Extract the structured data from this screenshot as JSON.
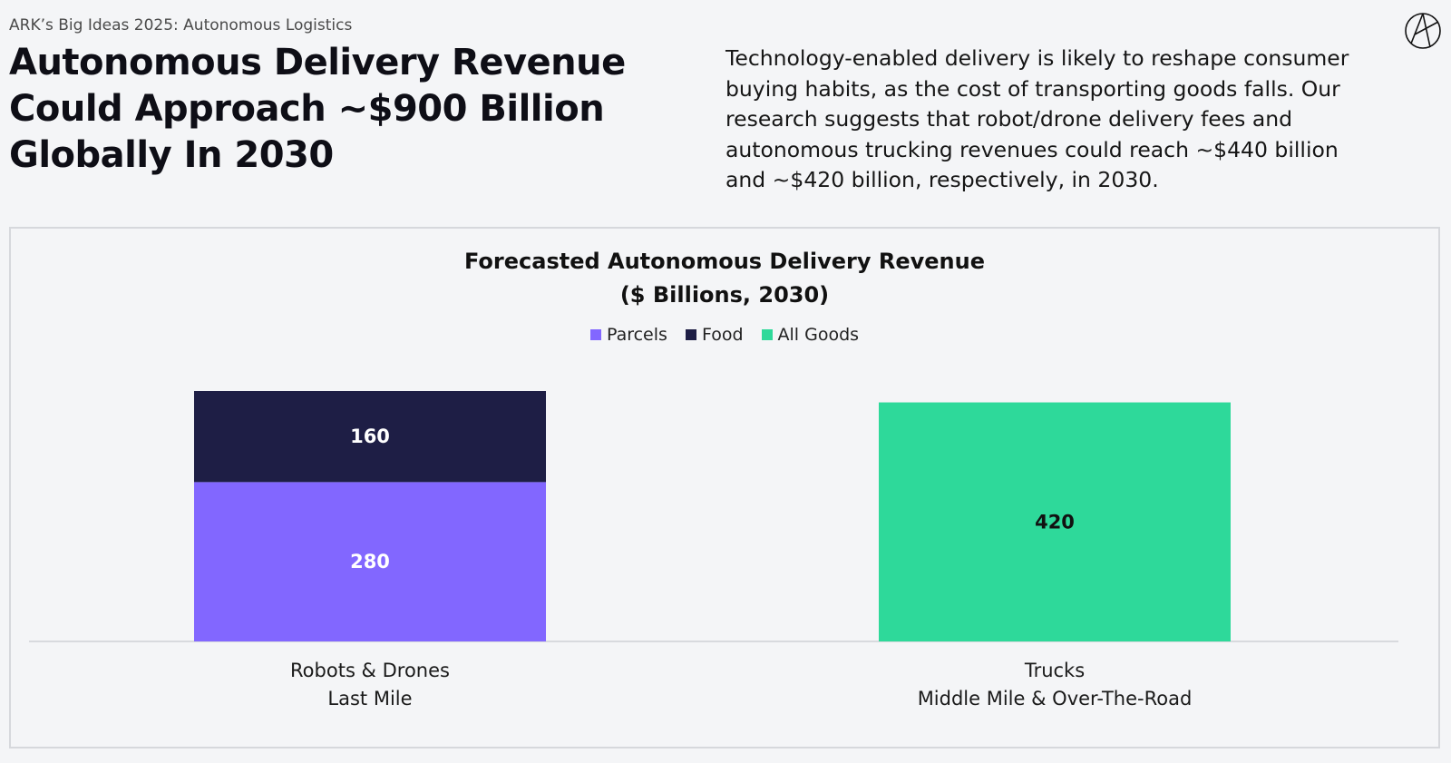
{
  "header": {
    "eyebrow": "ARK’s Big Ideas 2025: Autonomous Logistics",
    "headline_lines": [
      "Autonomous Delivery Revenue",
      "Could Approach ~$900 Billion",
      "Globally In 2030"
    ],
    "intro_lines": [
      "Technology-enabled delivery is likely to reshape consumer",
      "buying habits, as the cost of transporting goods falls. Our",
      "research suggests that robot/drone delivery fees and",
      "autonomous trucking revenues could reach ~$440 billion",
      "and ~$420 billion, respectively, in 2030."
    ],
    "logo_icon": "ark-logo-icon"
  },
  "chart_data": {
    "type": "bar",
    "stacked": true,
    "title": "Forecasted Autonomous Delivery Revenue",
    "subtitle": "($ Billions, 2030)",
    "categories": [
      [
        "Robots & Drones",
        "Last Mile"
      ],
      [
        "Trucks",
        "Middle Mile & Over-The-Road"
      ]
    ],
    "series": [
      {
        "name": "Parcels",
        "values": [
          280,
          0
        ],
        "color": "#8267ff",
        "label_color": "#ffffff"
      },
      {
        "name": "Food",
        "values": [
          160,
          0
        ],
        "color": "#1e1e45",
        "label_color": "#ffffff"
      },
      {
        "name": "All Goods",
        "values": [
          0,
          420
        ],
        "color": "#2ed99a",
        "label_color": "#111111"
      }
    ],
    "ylim": [
      0,
      440
    ],
    "grid": false,
    "legend_position": "top-center",
    "xlabel": "",
    "ylabel": ""
  }
}
